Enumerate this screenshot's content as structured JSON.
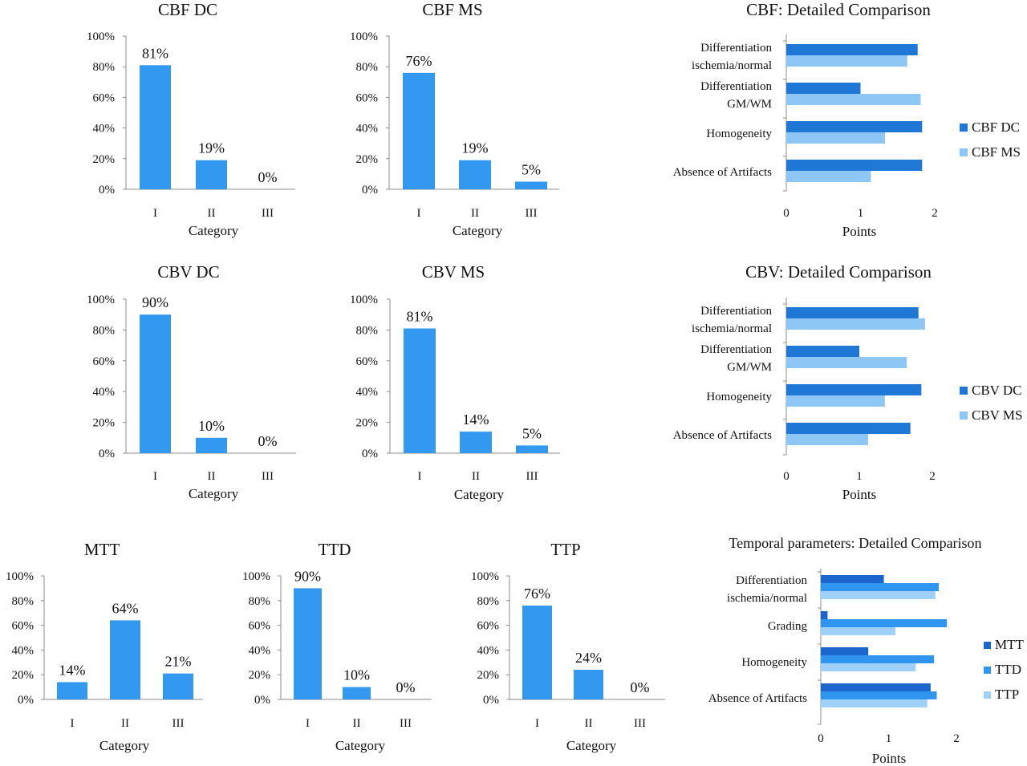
{
  "figure": {
    "background": "#ffffff",
    "axis_color": "#8c8c8c",
    "colors": {
      "dc": "#1f78d6",
      "ms": "#8ec7f6",
      "bar": "#3399f0",
      "mtt": "#1a66cc",
      "ttd": "#2f95ef",
      "ttp": "#9fd0f8"
    }
  },
  "chart_data": [
    {
      "id": "cbf_dc",
      "type": "bar",
      "title": "CBF DC",
      "categories": [
        "I",
        "II",
        "III"
      ],
      "values": [
        81,
        19,
        0
      ],
      "data_labels": [
        "81%",
        "19%",
        "0%"
      ],
      "xlabel": "Category",
      "ylabel": "",
      "ylim": [
        0,
        100
      ],
      "yticks": [
        "0%",
        "20%",
        "40%",
        "60%",
        "80%",
        "100%"
      ],
      "grid": false
    },
    {
      "id": "cbf_ms",
      "type": "bar",
      "title": "CBF MS",
      "categories": [
        "I",
        "II",
        "III"
      ],
      "values": [
        76,
        19,
        5
      ],
      "data_labels": [
        "76%",
        "19%",
        "5%"
      ],
      "xlabel": "Category",
      "ylabel": "",
      "ylim": [
        0,
        100
      ],
      "yticks": [
        "0%",
        "20%",
        "40%",
        "60%",
        "80%",
        "100%"
      ],
      "grid": false
    },
    {
      "id": "cbf_cmp",
      "type": "bar",
      "orientation": "horizontal",
      "title": "CBF: Detailed Comparison",
      "categories": [
        [
          "Differentiation",
          "ischemia/normal"
        ],
        [
          "Differentiation",
          "GM/WM"
        ],
        [
          "Homogeneity"
        ],
        [
          "Absence of Artifacts"
        ]
      ],
      "series": [
        {
          "name": "CBF DC",
          "color_key": "dc",
          "values": [
            1.77,
            1.0,
            1.83,
            1.83
          ]
        },
        {
          "name": "CBF MS",
          "color_key": "ms",
          "values": [
            1.63,
            1.81,
            1.33,
            1.14
          ]
        }
      ],
      "xlabel": "Points",
      "xlim": [
        0,
        2
      ],
      "xticks": [
        "0",
        "1",
        "2"
      ],
      "legend": "right",
      "grid": false
    },
    {
      "id": "cbv_dc",
      "type": "bar",
      "title": "CBV DC",
      "categories": [
        "I",
        "II",
        "III"
      ],
      "values": [
        90,
        10,
        0
      ],
      "data_labels": [
        "90%",
        "10%",
        "0%"
      ],
      "xlabel": "Category",
      "ylabel": "",
      "ylim": [
        0,
        100
      ],
      "yticks": [
        "0%",
        "20%",
        "40%",
        "60%",
        "80%",
        "100%"
      ],
      "grid": false
    },
    {
      "id": "cbv_ms",
      "type": "bar",
      "title": "CBV MS",
      "categories": [
        "I",
        "II",
        "III"
      ],
      "values": [
        81,
        14,
        5
      ],
      "data_labels": [
        "81%",
        "14%",
        "5%"
      ],
      "xlabel": "Category",
      "ylabel": "",
      "ylim": [
        0,
        100
      ],
      "yticks": [
        "0%",
        "20%",
        "40%",
        "60%",
        "80%",
        "100%"
      ],
      "grid": false
    },
    {
      "id": "cbv_cmp",
      "type": "bar",
      "orientation": "horizontal",
      "title": "CBV: Detailed Comparison",
      "categories": [
        [
          "Differentiation",
          "ischemia/normal"
        ],
        [
          "Differentiation",
          "GM/WM"
        ],
        [
          "Homogeneity"
        ],
        [
          "Absence of Artifacts"
        ]
      ],
      "series": [
        {
          "name": "CBV DC",
          "color_key": "dc",
          "values": [
            1.81,
            1.0,
            1.85,
            1.7
          ]
        },
        {
          "name": "CBV MS",
          "color_key": "ms",
          "values": [
            1.9,
            1.65,
            1.35,
            1.12
          ]
        }
      ],
      "xlabel": "Points",
      "xlim": [
        0,
        2
      ],
      "xticks": [
        "0",
        "1",
        "2"
      ],
      "legend": "right",
      "grid": false
    },
    {
      "id": "mtt",
      "type": "bar",
      "title": "MTT",
      "categories": [
        "I",
        "II",
        "III"
      ],
      "values": [
        14,
        64,
        21
      ],
      "data_labels": [
        "14%",
        "64%",
        "21%"
      ],
      "xlabel": "Category",
      "ylabel": "",
      "ylim": [
        0,
        100
      ],
      "yticks": [
        "0%",
        "20%",
        "40%",
        "60%",
        "80%",
        "100%"
      ],
      "grid": false
    },
    {
      "id": "ttd",
      "type": "bar",
      "title": "TTD",
      "categories": [
        "I",
        "II",
        "III"
      ],
      "values": [
        90,
        10,
        0
      ],
      "data_labels": [
        "90%",
        "10%",
        "0%"
      ],
      "xlabel": "Category",
      "ylabel": "",
      "ylim": [
        0,
        100
      ],
      "yticks": [
        "0%",
        "20%",
        "40%",
        "60%",
        "80%",
        "100%"
      ],
      "grid": false
    },
    {
      "id": "ttp",
      "type": "bar",
      "title": "TTP",
      "categories": [
        "I",
        "II",
        "III"
      ],
      "values": [
        76,
        24,
        0
      ],
      "data_labels": [
        "76%",
        "24%",
        "0%"
      ],
      "xlabel": "Category",
      "ylabel": "",
      "ylim": [
        0,
        100
      ],
      "yticks": [
        "0%",
        "20%",
        "40%",
        "60%",
        "80%",
        "100%"
      ],
      "grid": false
    },
    {
      "id": "temporal_cmp",
      "type": "bar",
      "orientation": "horizontal",
      "title": "Temporal parameters:  Detailed Comparison",
      "categories": [
        [
          "Differentiation",
          "ischemia/normal"
        ],
        [
          "Grading"
        ],
        [
          "Homogeneity"
        ],
        [
          "Absence of Artifacts"
        ]
      ],
      "series": [
        {
          "name": "MTT",
          "color_key": "mtt",
          "values": [
            0.93,
            0.1,
            0.7,
            1.62
          ]
        },
        {
          "name": "TTD",
          "color_key": "ttd",
          "values": [
            1.74,
            1.86,
            1.67,
            1.71
          ]
        },
        {
          "name": "TTP",
          "color_key": "ttp",
          "values": [
            1.69,
            1.1,
            1.4,
            1.57
          ]
        }
      ],
      "xlabel": "Points",
      "xlim": [
        0,
        2
      ],
      "xticks": [
        "0",
        "1",
        "2"
      ],
      "legend": "right",
      "grid": false
    }
  ]
}
